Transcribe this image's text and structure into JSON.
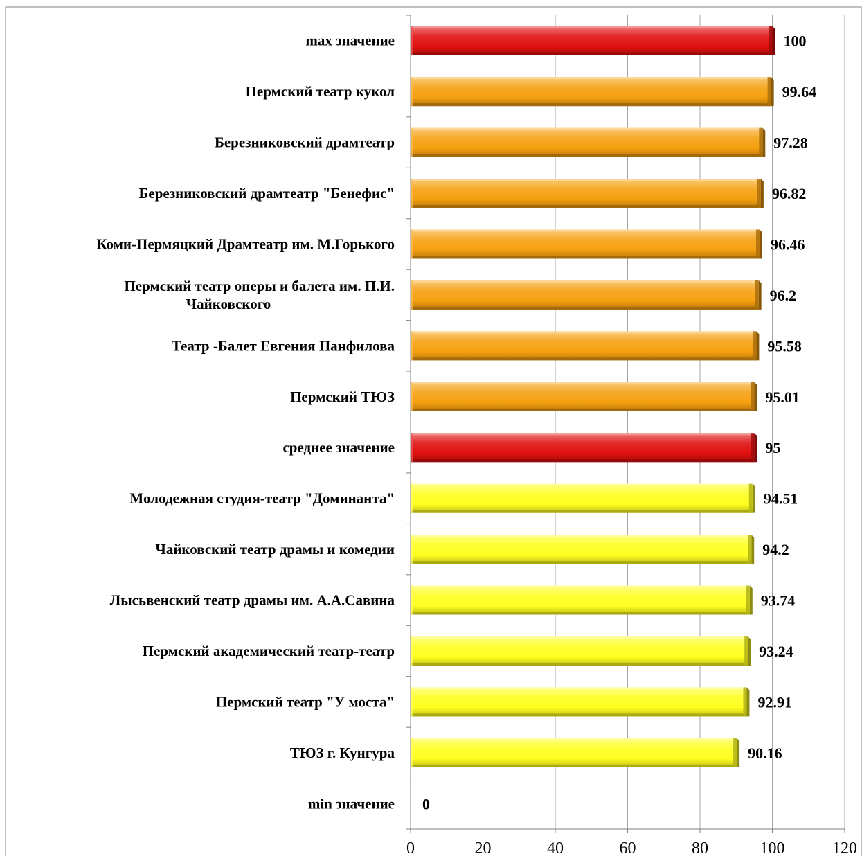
{
  "chart_data": {
    "type": "bar",
    "orientation": "horizontal",
    "categories": [
      "max значение",
      "Пермский театр кукол",
      "Березниковский драмтеатр",
      "Березниковский драмтеатр \"Бенефис\"",
      "Коми-Пермяцкий Драмтеатр им. М.Горького",
      "Пермский театр оперы и балета им. П.И. Чайковского",
      "Театр -Балет Евгения Панфилова",
      "Пермский ТЮЗ",
      "среднее значение",
      "Молодежная студия-театр \"Доминанта\"",
      "Чайковский театр драмы и комедии",
      "Лысьвенский театр драмы им. А.А.Савина",
      "Пермский академический театр-театр",
      "Пермский театр \"У моста\"",
      "ТЮЗ г. Кунгура",
      "min значение"
    ],
    "category_lines": [
      [
        "max значение"
      ],
      [
        "Пермский театр кукол"
      ],
      [
        "Березниковский драмтеатр"
      ],
      [
        "Березниковский драмтеатр \"Бенефис\""
      ],
      [
        "Коми-Пермяцкий Драмтеатр им. М.Горького"
      ],
      [
        "Пермский театр оперы и балета им. П.И.",
        "Чайковского"
      ],
      [
        "Театр -Балет Евгения Панфилова"
      ],
      [
        "Пермский ТЮЗ"
      ],
      [
        "среднее значение"
      ],
      [
        "Молодежная студия-театр \"Доминанта\""
      ],
      [
        "Чайковский театр драмы и комедии"
      ],
      [
        "Лысьвенский театр драмы им. А.А.Савина"
      ],
      [
        "Пермский академический театр-театр"
      ],
      [
        "Пермский театр \"У моста\""
      ],
      [
        "ТЮЗ г. Кунгура"
      ],
      [
        "min значение"
      ]
    ],
    "values": [
      100,
      99.64,
      97.28,
      96.82,
      96.46,
      96.2,
      95.58,
      95.01,
      95,
      94.51,
      94.2,
      93.74,
      93.24,
      92.91,
      90.16,
      0
    ],
    "value_labels": [
      "100",
      "99.64",
      "97.28",
      "96.82",
      "96.46",
      "96.2",
      "95.58",
      "95.01",
      "95",
      "94.51",
      "94.2",
      "93.74",
      "93.24",
      "92.91",
      "90.16",
      "0"
    ],
    "bar_groups": [
      "red",
      "orange",
      "orange",
      "orange",
      "orange",
      "orange",
      "orange",
      "orange",
      "red",
      "yellow",
      "yellow",
      "yellow",
      "yellow",
      "yellow",
      "yellow",
      "yellow"
    ],
    "colors": {
      "red": "#e01010",
      "orange": "#f5a010",
      "yellow": "#ffff20",
      "highlight_label": "#ff0000",
      "gridline": "#a6a6a6",
      "axis": "#808080"
    },
    "label_colors": [
      "#000000",
      "#000000",
      "#000000",
      "#000000",
      "#000000",
      "#000000",
      "#000000",
      "#000000",
      "#ff0000",
      "#000000",
      "#000000",
      "#000000",
      "#000000",
      "#000000",
      "#000000",
      "#000000"
    ],
    "xlim": [
      0,
      120
    ],
    "xticks": [
      "0",
      "20",
      "40",
      "60",
      "80",
      "100",
      "120"
    ],
    "xtick_values": [
      0,
      20,
      40,
      60,
      80,
      100,
      120
    ],
    "grid": true,
    "title": "",
    "xlabel": "",
    "ylabel": ""
  }
}
